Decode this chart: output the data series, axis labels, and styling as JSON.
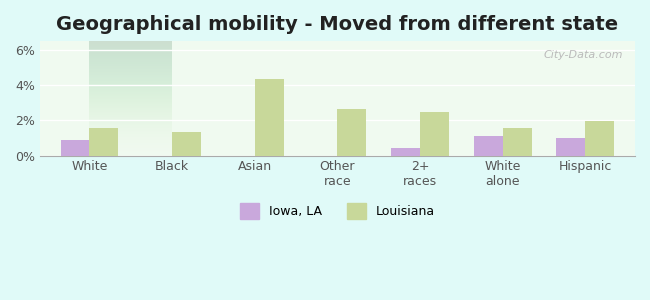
{
  "title": "Geographical mobility - Moved from different state",
  "categories": [
    "White",
    "Black",
    "Asian",
    "Other\nrace",
    "2+\nraces",
    "White\nalone",
    "Hispanic"
  ],
  "iowa_values": [
    0.9,
    0.0,
    0.0,
    0.0,
    0.45,
    1.1,
    1.0
  ],
  "louisiana_values": [
    1.55,
    1.35,
    4.35,
    2.65,
    2.5,
    1.55,
    1.95
  ],
  "iowa_color": "#c9a8dc",
  "louisiana_color": "#c8d89a",
  "ylim": [
    0,
    6.5
  ],
  "yticks": [
    0,
    2,
    4,
    6
  ],
  "ytick_labels": [
    "0%",
    "2%",
    "4%",
    "6%"
  ],
  "bar_width": 0.35,
  "background_color": "#e0faf8",
  "plot_bg_gradient_top": "#e8f5e4",
  "plot_bg_gradient_bottom": "#f5fef5",
  "legend_iowa": "Iowa, LA",
  "legend_louisiana": "Louisiana",
  "title_fontsize": 14,
  "axis_fontsize": 9,
  "legend_fontsize": 9
}
